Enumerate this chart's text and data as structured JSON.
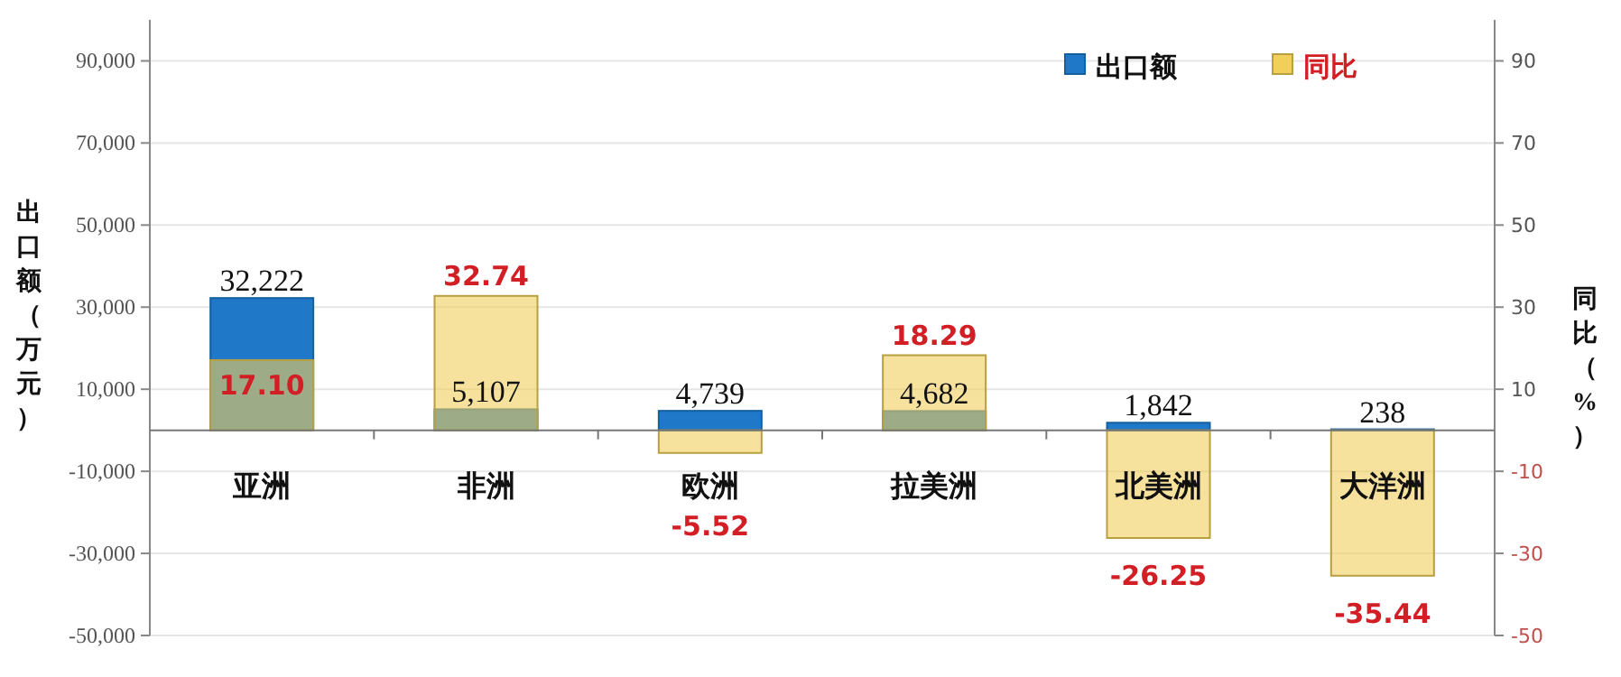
{
  "chart_data": {
    "type": "bar",
    "categories": [
      "亚洲",
      "非洲",
      "欧洲",
      "拉美洲",
      "北美洲",
      "大洋洲"
    ],
    "ylabel": "出口额（万元）",
    "y2label": "同比（%）",
    "ylim": [
      -50000,
      100000
    ],
    "yticks": [
      {
        "value": -50000,
        "label": "-50,000"
      },
      {
        "value": -30000,
        "label": "-30,000"
      },
      {
        "value": -10000,
        "label": "-10,000"
      },
      {
        "value": 10000,
        "label": "10,000"
      },
      {
        "value": 30000,
        "label": "30,000"
      },
      {
        "value": 50000,
        "label": "50,000"
      },
      {
        "value": 70000,
        "label": "70,000"
      },
      {
        "value": 90000,
        "label": "90,000"
      }
    ],
    "y2lim": [
      -50,
      100
    ],
    "y2ticks": [
      -50,
      -30,
      -10,
      10,
      30,
      50,
      70,
      90
    ],
    "series": [
      {
        "name": "出口额",
        "color": "#1f78c8",
        "values": [
          32222,
          5107,
          4739,
          4682,
          1842,
          238
        ],
        "value_labels": [
          "32,222",
          "5,107",
          "4,739",
          "4,682",
          "1,842",
          "238"
        ]
      },
      {
        "name": "同比",
        "color": "#f2cf5b",
        "axis": "y2",
        "values": [
          17.1,
          32.74,
          -5.52,
          18.29,
          -26.25,
          -35.44
        ],
        "value_labels": [
          "17.10",
          "32.74",
          "-5.52",
          "18.29",
          "-26.25",
          "-35.44"
        ]
      }
    ],
    "legend": "top right",
    "grid": "y"
  }
}
